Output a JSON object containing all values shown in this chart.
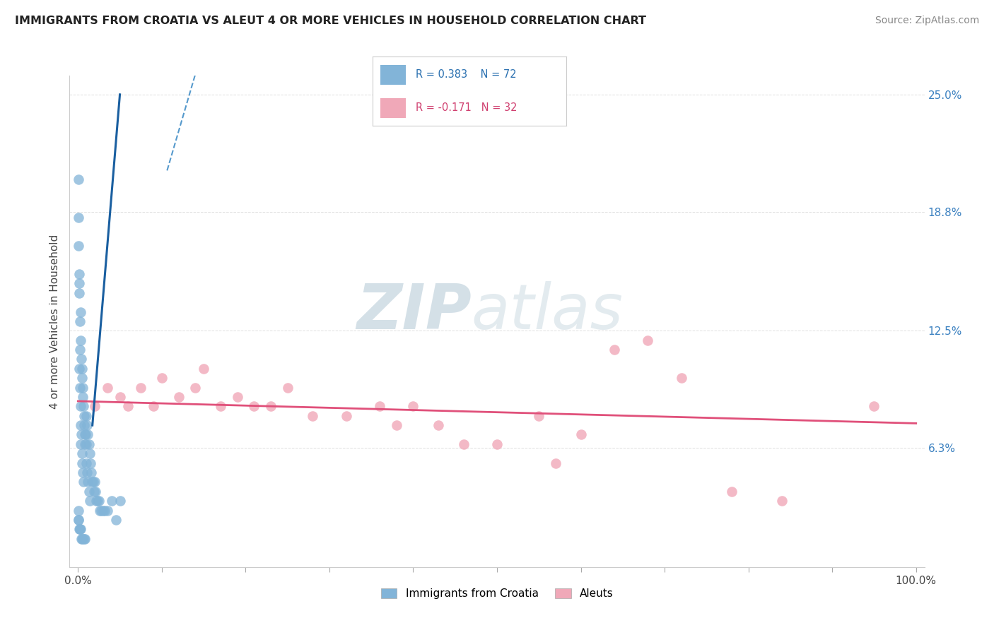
{
  "title": "IMMIGRANTS FROM CROATIA VS ALEUT 4 OR MORE VEHICLES IN HOUSEHOLD CORRELATION CHART",
  "source_text": "Source: ZipAtlas.com",
  "ylabel": "4 or more Vehicles in Household",
  "x_ticks": [
    0.0,
    10.0,
    20.0,
    30.0,
    40.0,
    50.0,
    60.0,
    70.0,
    80.0,
    90.0,
    100.0
  ],
  "x_tick_labels_ends": [
    "0.0%",
    "100.0%"
  ],
  "y_ticks": [
    0.0,
    6.3,
    12.5,
    18.8,
    25.0
  ],
  "y_tick_labels": [
    "",
    "6.3%",
    "12.5%",
    "18.8%",
    "25.0%"
  ],
  "xlim": [
    -1.0,
    101.0
  ],
  "ylim": [
    0.0,
    26.0
  ],
  "background_color": "#ffffff",
  "watermark_zip": "ZIP",
  "watermark_atlas": "atlas",
  "watermark_color_zip": "#c8d8e8",
  "watermark_color_atlas": "#b0c8d8",
  "croatia_color": "#82b4d8",
  "aleut_color": "#f0a8b8",
  "croatia_R": 0.383,
  "croatia_N": 72,
  "aleut_R": -0.171,
  "aleut_N": 32,
  "croatia_scatter_x": [
    0.08,
    0.08,
    0.1,
    0.12,
    0.15,
    0.15,
    0.18,
    0.2,
    0.22,
    0.25,
    0.28,
    0.3,
    0.3,
    0.35,
    0.35,
    0.4,
    0.4,
    0.45,
    0.45,
    0.5,
    0.5,
    0.55,
    0.55,
    0.6,
    0.65,
    0.65,
    0.7,
    0.75,
    0.8,
    0.85,
    0.9,
    0.95,
    1.0,
    1.0,
    1.1,
    1.1,
    1.2,
    1.2,
    1.3,
    1.3,
    1.4,
    1.4,
    1.5,
    1.6,
    1.7,
    1.8,
    1.9,
    2.0,
    2.1,
    2.2,
    2.3,
    2.5,
    2.6,
    2.8,
    3.0,
    3.2,
    3.5,
    4.0,
    4.5,
    5.0,
    0.08,
    0.09,
    0.1,
    0.15,
    0.2,
    0.25,
    0.3,
    0.4,
    0.5,
    0.6,
    0.7,
    0.8
  ],
  "croatia_scatter_y": [
    20.5,
    17.0,
    18.5,
    15.5,
    14.5,
    10.5,
    15.0,
    13.0,
    11.5,
    9.5,
    8.5,
    13.5,
    7.5,
    12.0,
    6.5,
    11.0,
    7.0,
    10.5,
    5.5,
    10.0,
    6.0,
    9.5,
    5.0,
    9.0,
    8.5,
    4.5,
    8.0,
    7.5,
    7.0,
    6.5,
    7.0,
    6.5,
    8.0,
    5.5,
    7.5,
    5.0,
    7.0,
    4.5,
    6.5,
    4.0,
    6.0,
    3.5,
    5.5,
    5.0,
    4.5,
    4.5,
    4.0,
    4.5,
    4.0,
    3.5,
    3.5,
    3.5,
    3.0,
    3.0,
    3.0,
    3.0,
    3.0,
    3.5,
    2.5,
    3.5,
    3.0,
    2.5,
    2.5,
    2.0,
    2.0,
    2.0,
    2.0,
    1.5,
    1.5,
    1.5,
    1.5,
    1.5
  ],
  "aleut_scatter_x": [
    2.0,
    3.5,
    5.0,
    6.0,
    7.5,
    9.0,
    10.0,
    12.0,
    14.0,
    15.0,
    17.0,
    19.0,
    21.0,
    23.0,
    25.0,
    28.0,
    32.0,
    36.0,
    38.0,
    40.0,
    43.0,
    46.0,
    50.0,
    55.0,
    57.0,
    60.0,
    64.0,
    68.0,
    72.0,
    78.0,
    84.0,
    95.0
  ],
  "aleut_scatter_y": [
    8.5,
    9.5,
    9.0,
    8.5,
    9.5,
    8.5,
    10.0,
    9.0,
    9.5,
    10.5,
    8.5,
    9.0,
    8.5,
    8.5,
    9.5,
    8.0,
    8.0,
    8.5,
    7.5,
    8.5,
    7.5,
    6.5,
    6.5,
    8.0,
    5.5,
    7.0,
    11.5,
    12.0,
    10.0,
    4.0,
    3.5,
    8.5
  ],
  "grid_color": "#dddddd",
  "grid_linestyle": "--",
  "grid_linewidth": 0.7,
  "croatia_line_color": "#1a5fa0",
  "croatia_line_dash_color": "#5599cc",
  "aleut_line_color": "#e0507a"
}
